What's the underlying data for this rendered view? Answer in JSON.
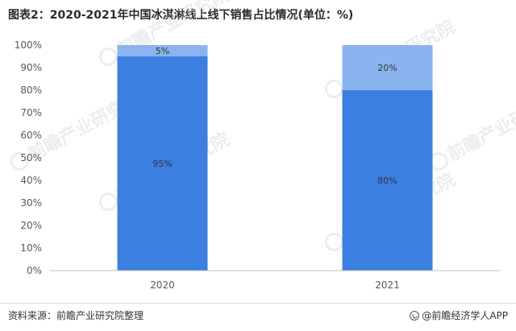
{
  "title": "图表2：2020-2021年中国冰淇淋线上线下销售占比情况(单位：%)",
  "footer": {
    "source": "资料来源：前瞻产业研究院整理",
    "brand": "@前瞻经济学人APP"
  },
  "watermark": {
    "text": "前瞻产业研究院",
    "icon": "qianzhan-logo-icon"
  },
  "chart_data": {
    "type": "bar",
    "stacked": true,
    "categories": [
      "2020",
      "2021"
    ],
    "series": [
      {
        "values": [
          95,
          80
        ],
        "labels": [
          "95%",
          "80%"
        ],
        "color": "#3b7fe0"
      },
      {
        "values": [
          5,
          20
        ],
        "labels": [
          "5%",
          "20%"
        ],
        "color": "#8ab4f0"
      }
    ],
    "yticks": [
      "0%",
      "10%",
      "20%",
      "30%",
      "40%",
      "50%",
      "60%",
      "70%",
      "80%",
      "90%",
      "100%"
    ],
    "ylim": [
      0,
      100
    ],
    "grid": false,
    "legend": "none",
    "xlabel": "",
    "ylabel": ""
  }
}
